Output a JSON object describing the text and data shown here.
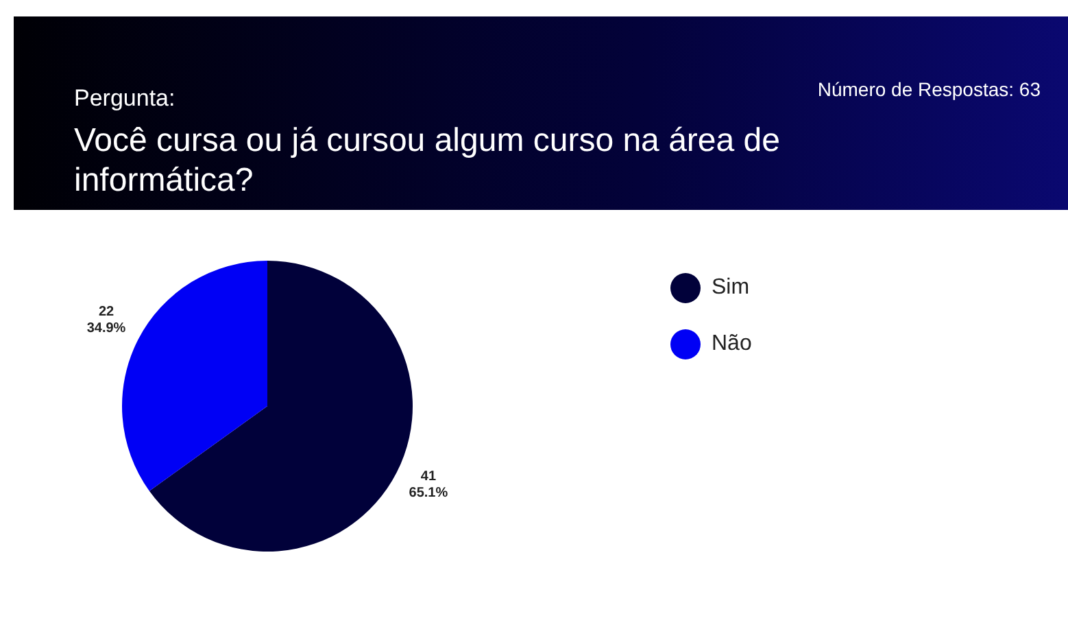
{
  "chart_data": {
    "type": "pie",
    "title": "Você cursa ou já cursou algum curso na área de informática?",
    "annotations": [
      "Pergunta:",
      "Número de Respostas: 63"
    ],
    "categories": [
      "Sim",
      "Não"
    ],
    "values": [
      41,
      22
    ],
    "colors": [
      "#01013a",
      "#0000f5"
    ],
    "value_labels": [
      "41\n65.1%",
      "22\n34.9%"
    ],
    "legend": "right"
  }
}
